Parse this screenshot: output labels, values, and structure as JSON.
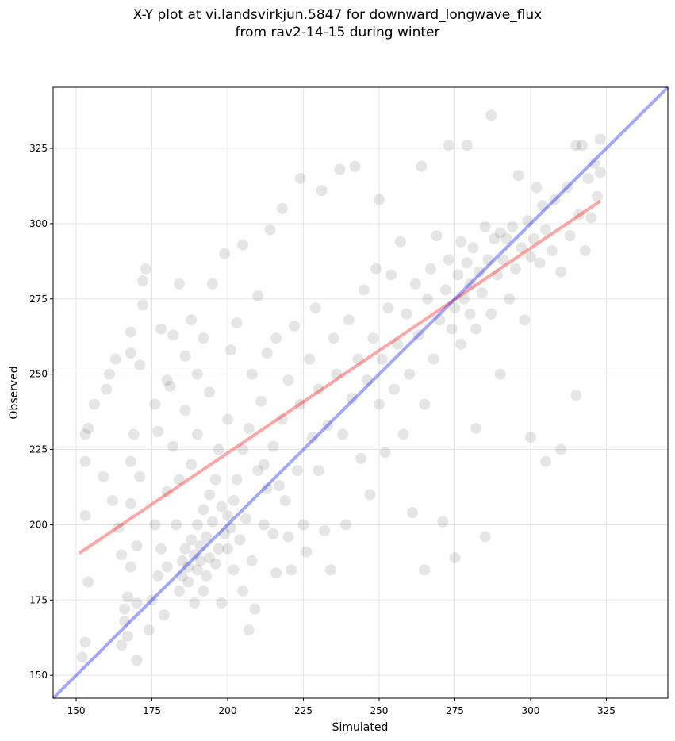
{
  "chart_data": {
    "type": "scatter",
    "title_lines": [
      "X-Y plot at vi.landsvirkjun.5847 for downward_longwave_flux",
      "from rav2-14-15 during winter"
    ],
    "xlabel": "Simulated",
    "ylabel": "Observed",
    "xlim": [
      142.4,
      345.3
    ],
    "ylim": [
      142.4,
      345.3
    ],
    "xticks": [
      150,
      175,
      200,
      225,
      250,
      275,
      300,
      325
    ],
    "yticks": [
      150,
      175,
      200,
      225,
      250,
      275,
      300,
      325
    ],
    "grid": true,
    "colors": {
      "points": "#000000",
      "fit": "#ff0000",
      "identity": "#0000ff"
    },
    "fit_line": {
      "x": [
        151,
        323
      ],
      "y": [
        190.5,
        307.5
      ]
    },
    "identity_line": {
      "x": [
        142.4,
        345.3
      ],
      "y": [
        142.4,
        345.3
      ]
    },
    "points": [
      [
        152,
        156
      ],
      [
        153,
        161
      ],
      [
        154,
        181
      ],
      [
        153,
        203
      ],
      [
        153,
        221
      ],
      [
        153,
        230
      ],
      [
        154,
        232
      ],
      [
        156,
        240
      ],
      [
        159,
        216
      ],
      [
        160,
        245
      ],
      [
        161,
        250
      ],
      [
        162,
        208
      ],
      [
        163,
        255
      ],
      [
        164,
        199
      ],
      [
        165,
        190
      ],
      [
        165,
        160
      ],
      [
        166,
        168
      ],
      [
        166,
        172
      ],
      [
        167,
        163
      ],
      [
        167,
        176
      ],
      [
        168,
        186
      ],
      [
        168,
        207
      ],
      [
        168,
        221
      ],
      [
        168,
        257
      ],
      [
        168,
        264
      ],
      [
        169,
        230
      ],
      [
        170,
        155
      ],
      [
        170,
        174
      ],
      [
        170,
        193
      ],
      [
        171,
        216
      ],
      [
        171,
        253
      ],
      [
        172,
        273
      ],
      [
        172,
        281
      ],
      [
        173,
        285
      ],
      [
        174,
        165
      ],
      [
        175,
        175
      ],
      [
        176,
        200
      ],
      [
        176,
        240
      ],
      [
        177,
        183
      ],
      [
        177,
        231
      ],
      [
        178,
        192
      ],
      [
        178,
        265
      ],
      [
        179,
        170
      ],
      [
        180,
        186
      ],
      [
        180,
        211
      ],
      [
        180,
        248
      ],
      [
        181,
        246
      ],
      [
        182,
        226
      ],
      [
        182,
        263
      ],
      [
        183,
        200
      ],
      [
        184,
        178
      ],
      [
        184,
        215
      ],
      [
        184,
        280
      ],
      [
        185,
        188
      ],
      [
        185,
        183
      ],
      [
        186,
        192
      ],
      [
        186,
        238
      ],
      [
        186,
        256
      ],
      [
        187,
        181
      ],
      [
        187,
        186
      ],
      [
        188,
        195
      ],
      [
        188,
        220
      ],
      [
        188,
        268
      ],
      [
        189,
        174
      ],
      [
        189,
        190
      ],
      [
        190,
        185
      ],
      [
        190,
        200
      ],
      [
        190,
        230
      ],
      [
        190,
        250
      ],
      [
        191,
        188
      ],
      [
        191,
        193
      ],
      [
        192,
        178
      ],
      [
        192,
        205
      ],
      [
        192,
        262
      ],
      [
        193,
        183
      ],
      [
        193,
        196
      ],
      [
        194,
        189
      ],
      [
        194,
        210
      ],
      [
        194,
        244
      ],
      [
        195,
        201
      ],
      [
        195,
        280
      ],
      [
        196,
        187
      ],
      [
        196,
        215
      ],
      [
        197,
        192
      ],
      [
        197,
        225
      ],
      [
        198,
        174
      ],
      [
        198,
        206
      ],
      [
        199,
        197
      ],
      [
        199,
        290
      ],
      [
        200,
        192
      ],
      [
        200,
        203
      ],
      [
        200,
        235
      ],
      [
        201,
        199
      ],
      [
        201,
        258
      ],
      [
        202,
        208
      ],
      [
        202,
        185
      ],
      [
        203,
        215
      ],
      [
        203,
        267
      ],
      [
        204,
        195
      ],
      [
        205,
        178
      ],
      [
        205,
        225
      ],
      [
        205,
        293
      ],
      [
        206,
        202
      ],
      [
        207,
        232
      ],
      [
        207,
        165
      ],
      [
        208,
        188
      ],
      [
        208,
        250
      ],
      [
        209,
        172
      ],
      [
        210,
        218
      ],
      [
        210,
        276
      ],
      [
        211,
        241
      ],
      [
        212,
        200
      ],
      [
        212,
        220
      ],
      [
        213,
        212
      ],
      [
        213,
        257
      ],
      [
        214,
        298
      ],
      [
        215,
        197
      ],
      [
        215,
        226
      ],
      [
        216,
        184
      ],
      [
        216,
        262
      ],
      [
        217,
        213
      ],
      [
        218,
        235
      ],
      [
        218,
        305
      ],
      [
        219,
        208
      ],
      [
        220,
        196
      ],
      [
        220,
        248
      ],
      [
        221,
        185
      ],
      [
        222,
        266
      ],
      [
        223,
        218
      ],
      [
        224,
        240
      ],
      [
        224,
        315
      ],
      [
        225,
        200
      ],
      [
        226,
        191
      ],
      [
        227,
        255
      ],
      [
        228,
        229
      ],
      [
        229,
        272
      ],
      [
        230,
        218
      ],
      [
        230,
        245
      ],
      [
        231,
        311
      ],
      [
        232,
        198
      ],
      [
        233,
        233
      ],
      [
        234,
        185
      ],
      [
        235,
        262
      ],
      [
        236,
        250
      ],
      [
        237,
        318
      ],
      [
        238,
        230
      ],
      [
        239,
        200
      ],
      [
        240,
        268
      ],
      [
        241,
        242
      ],
      [
        242,
        319
      ],
      [
        243,
        255
      ],
      [
        244,
        222
      ],
      [
        245,
        278
      ],
      [
        246,
        248
      ],
      [
        247,
        210
      ],
      [
        248,
        262
      ],
      [
        249,
        285
      ],
      [
        250,
        240
      ],
      [
        250,
        308
      ],
      [
        251,
        255
      ],
      [
        252,
        224
      ],
      [
        253,
        272
      ],
      [
        254,
        283
      ],
      [
        255,
        245
      ],
      [
        256,
        260
      ],
      [
        257,
        294
      ],
      [
        258,
        230
      ],
      [
        259,
        270
      ],
      [
        260,
        250
      ],
      [
        261,
        204
      ],
      [
        262,
        280
      ],
      [
        263,
        263
      ],
      [
        264,
        319
      ],
      [
        265,
        240
      ],
      [
        265,
        185
      ],
      [
        266,
        275
      ],
      [
        267,
        285
      ],
      [
        268,
        255
      ],
      [
        269,
        296
      ],
      [
        270,
        268
      ],
      [
        271,
        201
      ],
      [
        272,
        278
      ],
      [
        273,
        288
      ],
      [
        273,
        326
      ],
      [
        274,
        265
      ],
      [
        275,
        272
      ],
      [
        275,
        189
      ],
      [
        276,
        283
      ],
      [
        277,
        260
      ],
      [
        277,
        294
      ],
      [
        278,
        275
      ],
      [
        279,
        287
      ],
      [
        279,
        326
      ],
      [
        280,
        270
      ],
      [
        280,
        280
      ],
      [
        281,
        292
      ],
      [
        282,
        265
      ],
      [
        282,
        232
      ],
      [
        283,
        284
      ],
      [
        284,
        277
      ],
      [
        285,
        299
      ],
      [
        285,
        196
      ],
      [
        286,
        288
      ],
      [
        287,
        336
      ],
      [
        287,
        270
      ],
      [
        288,
        295
      ],
      [
        289,
        283
      ],
      [
        290,
        250
      ],
      [
        290,
        297
      ],
      [
        291,
        288
      ],
      [
        292,
        295
      ],
      [
        293,
        275
      ],
      [
        294,
        299
      ],
      [
        295,
        285
      ],
      [
        296,
        316
      ],
      [
        297,
        292
      ],
      [
        298,
        268
      ],
      [
        299,
        301
      ],
      [
        300,
        229
      ],
      [
        300,
        289
      ],
      [
        301,
        295
      ],
      [
        302,
        312
      ],
      [
        303,
        287
      ],
      [
        304,
        306
      ],
      [
        305,
        221
      ],
      [
        305,
        298
      ],
      [
        307,
        291
      ],
      [
        308,
        308
      ],
      [
        310,
        225
      ],
      [
        310,
        284
      ],
      [
        312,
        312
      ],
      [
        313,
        296
      ],
      [
        315,
        243
      ],
      [
        315,
        326
      ],
      [
        316,
        303
      ],
      [
        317,
        326
      ],
      [
        318,
        291
      ],
      [
        319,
        315
      ],
      [
        320,
        302
      ],
      [
        321,
        320
      ],
      [
        322,
        309
      ],
      [
        323,
        328
      ],
      [
        323,
        317
      ]
    ]
  }
}
